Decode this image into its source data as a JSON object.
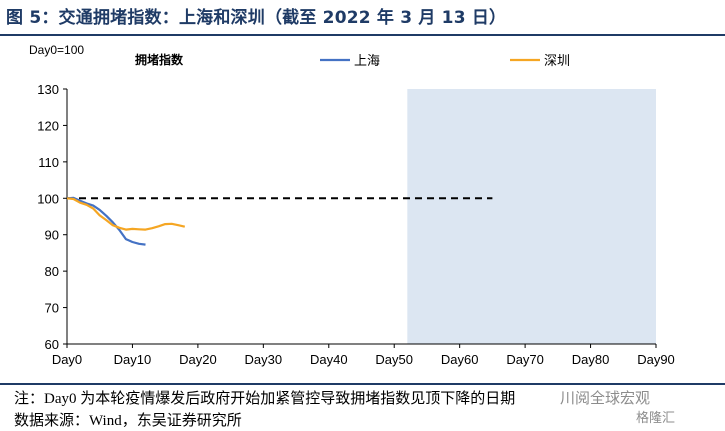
{
  "figure": {
    "title": "图 5：交通拥堵指数：上海和深圳（截至 2022 年 3 月 13 日）",
    "note": "注：Day0 为本轮疫情爆发后政府开始加紧管控导致拥堵指数见顶下降的日期",
    "source": "数据来源：Wind，东吴证券研究所",
    "watermark": "川阅全球宏观",
    "watermark2": "格隆汇"
  },
  "chart_data": {
    "type": "line",
    "title": "拥堵指数",
    "annotation": "Day0=100",
    "xlabel": "",
    "ylabel": "",
    "xlim": [
      0,
      90
    ],
    "ylim": [
      60,
      130
    ],
    "x_ticks": [
      0,
      10,
      20,
      30,
      40,
      50,
      60,
      70,
      80,
      90
    ],
    "x_tick_labels": [
      "Day0",
      "Day10",
      "Day20",
      "Day30",
      "Day40",
      "Day50",
      "Day60",
      "Day70",
      "Day80",
      "Day90"
    ],
    "y_ticks": [
      60,
      70,
      80,
      90,
      100,
      110,
      120,
      130
    ],
    "y_tick_labels": [
      "60",
      "70",
      "80",
      "90",
      "100",
      "110",
      "120",
      "130"
    ],
    "reference_line": {
      "y": 100,
      "style": "dashed",
      "color": "#000000"
    },
    "shaded_region": {
      "x": [
        52,
        90
      ],
      "color": "#dce6f2"
    },
    "legend_position": "top",
    "series": [
      {
        "name": "上海",
        "color": "#4472c4",
        "x": [
          0,
          1,
          2,
          3,
          4,
          5,
          6,
          7,
          8,
          9,
          10,
          11,
          12
        ],
        "y": [
          100,
          100.1,
          99.3,
          98.6,
          98.0,
          96.8,
          95.2,
          93.4,
          91.3,
          88.8,
          88.0,
          87.5,
          87.3
        ]
      },
      {
        "name": "深圳",
        "color": "#f5a623",
        "x": [
          0,
          1,
          2,
          3,
          4,
          5,
          6,
          7,
          8,
          9,
          10,
          11,
          12,
          13,
          14,
          15,
          16,
          17,
          18
        ],
        "y": [
          100,
          99.8,
          98.8,
          98.2,
          97.2,
          95.3,
          94.0,
          92.6,
          91.9,
          91.4,
          91.6,
          91.5,
          91.4,
          91.8,
          92.3,
          92.9,
          93.0,
          92.6,
          92.2
        ]
      }
    ]
  }
}
